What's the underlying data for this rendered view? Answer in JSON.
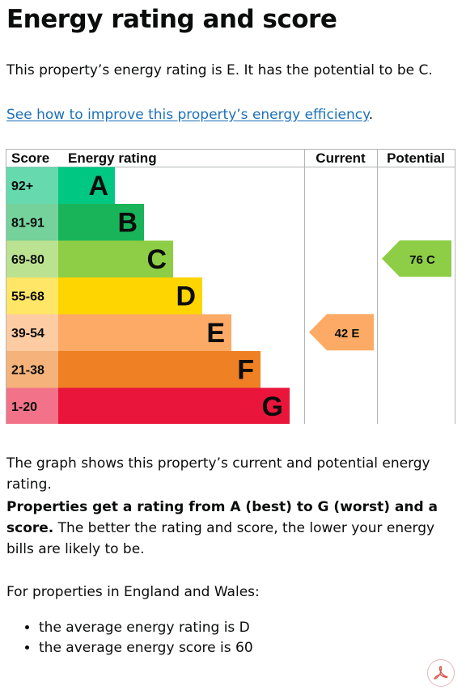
{
  "page": {
    "title": "Energy rating and score",
    "intro": "This property’s energy rating is E. It has the potential to be C.",
    "link_text": "See how to improve this property’s energy efficiency",
    "link_suffix": ".",
    "graph_caption": "The graph shows this property’s current and potential energy rating.",
    "ratings_bold": "Properties get a rating from A (best) to G (worst) and a score.",
    "ratings_rest": " The better the rating and score, the lower your energy bills are likely to be.",
    "england_wales": "For properties in England and Wales:",
    "bullets": [
      "the average energy rating is D",
      "the average energy score is 60"
    ],
    "pdf_icon": "pdf-icon"
  },
  "chart_data": {
    "type": "bar",
    "headers": {
      "score": "Score",
      "rating": "Energy rating",
      "current": "Current",
      "potential": "Potential"
    },
    "bands": [
      {
        "score": "92+",
        "letter": "A",
        "rank": 1,
        "color": "#00c781",
        "score_color": "#66d9ae"
      },
      {
        "score": "81-91",
        "letter": "B",
        "rank": 2,
        "color": "#19b459",
        "score_color": "#75d29b"
      },
      {
        "score": "69-80",
        "letter": "C",
        "rank": 3,
        "color": "#8dce46",
        "score_color": "#bbe290"
      },
      {
        "score": "55-68",
        "letter": "D",
        "rank": 4,
        "color": "#ffd500",
        "score_color": "#ffe666"
      },
      {
        "score": "39-54",
        "letter": "E",
        "rank": 5,
        "color": "#fcaa65",
        "score_color": "#fdcca3"
      },
      {
        "score": "21-38",
        "letter": "F",
        "rank": 6,
        "color": "#ef8023",
        "score_color": "#f5b37b"
      },
      {
        "score": "1-20",
        "letter": "G",
        "rank": 7,
        "color": "#e9153b",
        "score_color": "#f27389"
      }
    ],
    "current": {
      "score": 42,
      "letter": "E",
      "label": "42 E",
      "color": "#fcaa65"
    },
    "potential": {
      "score": 76,
      "letter": "C",
      "label": "76 C",
      "color": "#8dce46"
    }
  }
}
